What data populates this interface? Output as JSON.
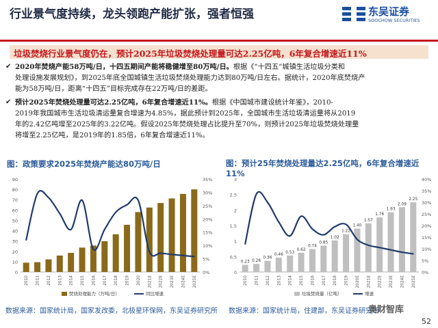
{
  "header": {
    "title": "行业景气度持续，龙头领跑产能扩张，强者恒强"
  },
  "logo": {
    "cn": "东吴证券",
    "en": "SOOCHOW SECURITIES"
  },
  "banner": {
    "text": "垃圾焚烧行业景气度仍在，预计2025年垃圾焚烧处理量可达2.25亿吨，6年复合增速近11%"
  },
  "bullets": [
    {
      "bold": "2020年焚烧产能58万吨/日，十四五期间产能将稳健增至80万吨/日。",
      "lines": [
        "根据《“十四五”城镇生活垃圾分类和",
        "处理设施发展规划》，到2025年底全国城镇生活垃圾焚烧处理能力达到80万吨/日左右。据统计，2020年底焚烧产",
        "能为58万吨/日，距离“十四五”目标完成存在22万吨/日的差距。"
      ]
    },
    {
      "bold": "预计2025年焚烧处理量可达2.25亿吨，6年复合增速近11%。",
      "lines": [
        "根据《中国城市建设统计年鉴》，2010-",
        "2019年我国城市生活垃圾清运量复合增速为4.85%，据此预计到2025年，全国城市生活垃圾清运量将从2019",
        "年的2.42亿吨增至2025年的3.22亿吨。假设2025年焚烧处理占比提升至70%，则预计2025年垃圾焚烧处理量",
        "将增至2.25亿吨，是2019年的1.85倍，6年复合增速近11%。"
      ]
    }
  ],
  "captions": {
    "left": "图：政策要求2025年焚烧产能达80万吨/日",
    "right": "图：预计25年焚烧处理量达2.25亿吨，6年复合增速近11%"
  },
  "sources": {
    "left": "数据来源：国家统计局，国家发改委，北极星环保网，东吴证券研究所",
    "right": "数据来源：国家统计局，住建部，东吴证券研究所"
  },
  "watermark": "奥财智库",
  "page_number": "52",
  "colors": {
    "accent_red": "#c4161c",
    "bar_olive": "#8a6a1a",
    "line_navy": "#1f3a6b",
    "bar_grey": "#bfbfbf"
  },
  "chart_data": [
    {
      "type": "bar",
      "x": [
        "2010",
        "2011",
        "2012",
        "2013",
        "2014",
        "2015",
        "2016",
        "2017",
        "2018",
        "2019",
        "2020",
        "2021E",
        "2022E",
        "2023E",
        "2024E",
        "2025E"
      ],
      "series": [
        {
          "name": "焚烧处理能力（万吨/日）",
          "type": "bar",
          "axis": "left",
          "values": [
            9,
            9.5,
            12.2,
            15.9,
            18.5,
            23.6,
            25.6,
            29.8,
            36.5,
            45.7,
            58,
            62.4,
            66.8,
            71.2,
            75.6,
            80
          ]
        },
        {
          "name": "同比增速",
          "type": "line",
          "axis": "right",
          "values": [
            12,
            29.5,
            28,
            22,
            16,
            27,
            8.5,
            16,
            22.5,
            25.3,
            27,
            7.6,
            7.1,
            6.6,
            6.2,
            5.8
          ]
        }
      ],
      "ylim_left": [
        0,
        90
      ],
      "yticks_left": [
        0,
        10,
        20,
        30,
        40,
        50,
        60,
        70,
        80,
        90
      ],
      "ylim_right": [
        0,
        35
      ],
      "yticks_right": [
        "0%",
        "5%",
        "10%",
        "15%",
        "20%",
        "25%",
        "30%",
        "35%"
      ],
      "legend": "bottom",
      "grid": false
    },
    {
      "type": "bar",
      "x": [
        "2010",
        "2011",
        "2012",
        "2013",
        "2014",
        "2015",
        "2016",
        "2017",
        "2018",
        "2019",
        "2020E",
        "2021E",
        "2022E",
        "2023E",
        "2024E",
        "2025E"
      ],
      "series": [
        {
          "name": "垃圾焚烧量（亿吨）",
          "type": "bar",
          "axis": "left",
          "values": [
            0.23,
            0.26,
            0.36,
            0.46,
            0.53,
            0.62,
            0.74,
            0.85,
            1.02,
            1.22,
            1.4,
            1.57,
            1.76,
            1.93,
            2.09,
            2.25
          ],
          "labels": [
            "0.23",
            "0.26",
            "0.36",
            "0.46",
            "0.53",
            "0.62",
            "0.74",
            "0.85",
            "1.02",
            "1.22",
            "1.40",
            "1.57",
            "1.76",
            "1.93",
            "2.09",
            "2.25"
          ]
        },
        {
          "name": "增速",
          "type": "line",
          "axis": "right",
          "values": [
            12,
            33.5,
            30,
            21.5,
            15.5,
            24,
            18.5,
            16,
            19.5,
            20.5,
            14,
            11.5,
            10.5,
            9.5,
            8.5,
            7.8
          ]
        }
      ],
      "ylim_left": [
        0,
        3.0
      ],
      "yticks_left": [
        "0",
        "0.5",
        "1",
        "1.5",
        "2",
        "2.5",
        "3"
      ],
      "ylim_right": [
        0,
        40
      ],
      "yticks_right": [
        "0%",
        "5%",
        "10%",
        "15%",
        "20%",
        "25%",
        "30%",
        "35%",
        "40%"
      ],
      "legend": "bottom",
      "grid": false
    }
  ]
}
